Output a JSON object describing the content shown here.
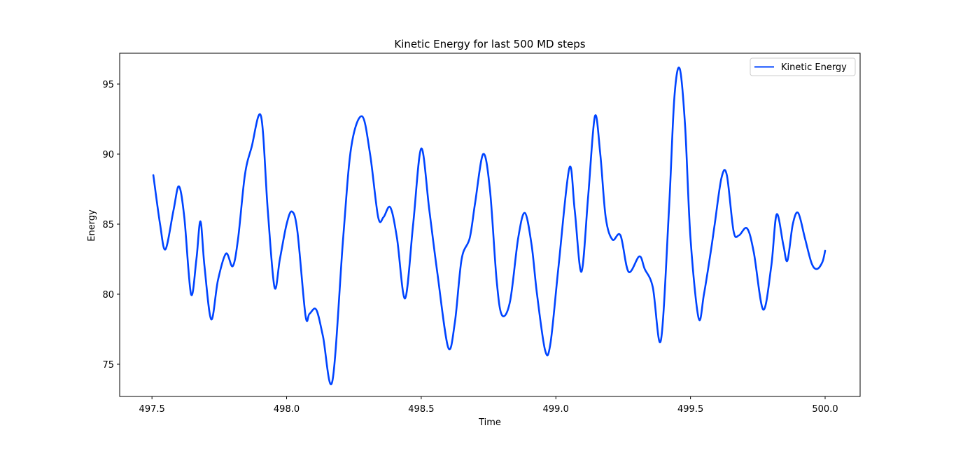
{
  "chart_data": {
    "type": "line",
    "title": "Kinetic Energy for last 500 MD steps",
    "xlabel": "Time",
    "ylabel": "Energy",
    "xlim": [
      497.38,
      500.13
    ],
    "ylim": [
      72.7,
      97.2
    ],
    "xticks": [
      497.5,
      498.0,
      498.5,
      499.0,
      499.5,
      500.0
    ],
    "xtick_labels": [
      "497.5",
      "498.0",
      "498.5",
      "499.0",
      "499.5",
      "500.0"
    ],
    "yticks": [
      75,
      80,
      85,
      90,
      95
    ],
    "ytick_labels": [
      "75",
      "80",
      "85",
      "90",
      "95"
    ],
    "grid": false,
    "legend": "upper right",
    "series": [
      {
        "name": "Kinetic Energy",
        "color": "#0044ff",
        "points": [
          [
            497.505,
            88.5
          ],
          [
            497.53,
            85.0
          ],
          [
            497.55,
            83.2
          ],
          [
            497.58,
            86.0
          ],
          [
            497.6,
            87.7
          ],
          [
            497.62,
            85.5
          ],
          [
            497.645,
            80.0
          ],
          [
            497.665,
            82.5
          ],
          [
            497.68,
            85.2
          ],
          [
            497.695,
            82.0
          ],
          [
            497.72,
            78.2
          ],
          [
            497.745,
            81.0
          ],
          [
            497.775,
            82.9
          ],
          [
            497.8,
            82.0
          ],
          [
            497.82,
            84.0
          ],
          [
            497.845,
            88.5
          ],
          [
            497.87,
            90.5
          ],
          [
            497.905,
            92.7
          ],
          [
            497.93,
            86.0
          ],
          [
            497.955,
            80.5
          ],
          [
            497.975,
            82.5
          ],
          [
            498.0,
            85.0
          ],
          [
            498.02,
            85.9
          ],
          [
            498.04,
            84.5
          ],
          [
            498.07,
            78.5
          ],
          [
            498.085,
            78.6
          ],
          [
            498.11,
            78.9
          ],
          [
            498.135,
            77.0
          ],
          [
            498.17,
            73.8
          ],
          [
            498.21,
            84.0
          ],
          [
            498.24,
            90.5
          ],
          [
            498.28,
            92.7
          ],
          [
            498.31,
            90.0
          ],
          [
            498.34,
            85.5
          ],
          [
            498.36,
            85.5
          ],
          [
            498.385,
            86.2
          ],
          [
            498.41,
            84.0
          ],
          [
            498.44,
            79.7
          ],
          [
            498.47,
            85.0
          ],
          [
            498.5,
            90.4
          ],
          [
            498.53,
            86.0
          ],
          [
            498.56,
            81.5
          ],
          [
            498.6,
            76.2
          ],
          [
            498.625,
            78.0
          ],
          [
            498.65,
            82.5
          ],
          [
            498.68,
            84.0
          ],
          [
            498.7,
            86.5
          ],
          [
            498.73,
            90.0
          ],
          [
            498.755,
            87.5
          ],
          [
            498.78,
            81.0
          ],
          [
            498.8,
            78.5
          ],
          [
            498.83,
            79.5
          ],
          [
            498.86,
            84.0
          ],
          [
            498.885,
            85.8
          ],
          [
            498.91,
            83.5
          ],
          [
            498.93,
            80.0
          ],
          [
            498.96,
            76.0
          ],
          [
            498.98,
            76.5
          ],
          [
            499.01,
            82.0
          ],
          [
            499.05,
            89.0
          ],
          [
            499.07,
            86.0
          ],
          [
            499.095,
            81.6
          ],
          [
            499.12,
            87.0
          ],
          [
            499.145,
            92.7
          ],
          [
            499.165,
            90.0
          ],
          [
            499.185,
            85.5
          ],
          [
            499.21,
            83.9
          ],
          [
            499.24,
            84.2
          ],
          [
            499.27,
            81.6
          ],
          [
            499.31,
            82.7
          ],
          [
            499.33,
            81.8
          ],
          [
            499.36,
            80.5
          ],
          [
            499.39,
            76.7
          ],
          [
            499.42,
            86.0
          ],
          [
            499.44,
            94.0
          ],
          [
            499.46,
            96.1
          ],
          [
            499.48,
            92.0
          ],
          [
            499.5,
            84.0
          ],
          [
            499.53,
            78.3
          ],
          [
            499.55,
            80.0
          ],
          [
            499.575,
            83.0
          ],
          [
            499.59,
            85.0
          ],
          [
            499.615,
            88.3
          ],
          [
            499.635,
            88.5
          ],
          [
            499.66,
            84.5
          ],
          [
            499.68,
            84.2
          ],
          [
            499.71,
            84.7
          ],
          [
            499.735,
            83.0
          ],
          [
            499.77,
            78.9
          ],
          [
            499.8,
            82.0
          ],
          [
            499.82,
            85.7
          ],
          [
            499.845,
            83.5
          ],
          [
            499.86,
            82.4
          ],
          [
            499.88,
            85.0
          ],
          [
            499.9,
            85.8
          ],
          [
            499.925,
            84.0
          ],
          [
            499.95,
            82.2
          ],
          [
            499.97,
            81.8
          ],
          [
            499.99,
            82.3
          ],
          [
            500.0,
            83.1
          ]
        ]
      }
    ]
  }
}
